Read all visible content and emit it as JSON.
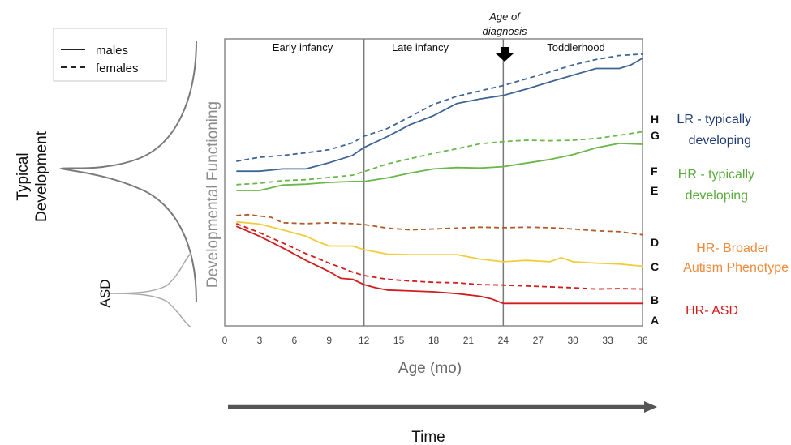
{
  "chart_data": {
    "type": "line",
    "xlabel": "Age (mo)",
    "ylabel": "Developmental Functioning",
    "bottom_label": "Time",
    "xlim": [
      0,
      36
    ],
    "x_ticks": [
      0,
      3,
      6,
      9,
      12,
      15,
      18,
      21,
      24,
      27,
      30,
      33,
      36
    ],
    "grid": false,
    "legend": {
      "position": "top-left",
      "entries": [
        {
          "label": "males",
          "style": "solid"
        },
        {
          "label": "females",
          "style": "dashed"
        }
      ]
    },
    "periods": [
      {
        "label": "Early infancy",
        "from": 0,
        "to": 12
      },
      {
        "label": "Late infancy",
        "from": 12,
        "to": 24
      },
      {
        "label": "Toddlerhood",
        "from": 24,
        "to": 36
      }
    ],
    "dividers": [
      12,
      24
    ],
    "diagnosis_marker": {
      "x": 24,
      "label_line1": "Age of",
      "label_line2": "diagnosis"
    },
    "distributions": [
      {
        "label_line1": "Typical",
        "label_line2": "Development"
      },
      {
        "label_line1": "ASD",
        "label_line2": ""
      }
    ],
    "groups": [
      {
        "line1": "LR - typically",
        "line2": "developing",
        "color": "#1f3b73",
        "letters": [
          "H",
          "G"
        ]
      },
      {
        "line1": "HR - typically",
        "line2": "developing",
        "color": "#5aab3c",
        "letters": [
          "F",
          "E"
        ]
      },
      {
        "line1": "HR- Broader",
        "line2": "Autism Phenotype",
        "color": "#f08a3a",
        "letters": [
          "D",
          "C"
        ]
      },
      {
        "line1": "HR- ASD",
        "line2": "",
        "color": "#d11c1c",
        "letters": [
          "B",
          "A"
        ]
      }
    ],
    "series": [
      {
        "letter": "H",
        "sex": "female",
        "dashed": true,
        "color": "#3f6595",
        "x": [
          1,
          3,
          5,
          7,
          9,
          11,
          12,
          14,
          16,
          18,
          20,
          22,
          24,
          26,
          28,
          30,
          32,
          34,
          36
        ],
        "y": [
          72.7,
          73.6,
          74.0,
          74.6,
          75.3,
          76.8,
          78.3,
          80.0,
          82.7,
          85.4,
          87.2,
          88.4,
          89.6,
          91.1,
          92.6,
          94.2,
          95.4,
          96.3,
          96.6
        ]
      },
      {
        "letter": "G",
        "sex": "male",
        "dashed": false,
        "color": "#3f6595",
        "x": [
          1,
          3,
          5,
          7,
          9,
          11,
          12,
          14,
          16,
          18,
          20,
          22,
          24,
          26,
          28,
          30,
          32,
          34,
          35,
          36
        ],
        "y": [
          70.5,
          70.5,
          71.0,
          71.0,
          72.4,
          74.0,
          75.8,
          78.2,
          80.9,
          82.9,
          85.6,
          86.6,
          87.4,
          88.8,
          90.4,
          91.9,
          93.4,
          93.4,
          94.2,
          95.7
        ]
      },
      {
        "letter": "F",
        "sex": "female",
        "dashed": true,
        "color": "#6ab74a",
        "x": [
          1,
          3,
          5,
          7,
          9,
          11,
          12,
          14,
          16,
          18,
          20,
          22,
          24,
          26,
          28,
          30,
          32,
          34,
          36
        ],
        "y": [
          67.5,
          67.8,
          68.4,
          68.6,
          69.1,
          69.6,
          70.4,
          72.1,
          73.3,
          74.5,
          75.5,
          76.6,
          77.1,
          77.4,
          77.3,
          77.4,
          77.8,
          78.5,
          79.3
        ]
      },
      {
        "letter": "E",
        "sex": "male",
        "dashed": false,
        "color": "#6ab74a",
        "x": [
          1,
          3,
          5,
          7,
          9,
          11,
          12,
          14,
          16,
          18,
          20,
          22,
          24,
          26,
          28,
          30,
          32,
          34,
          36
        ],
        "y": [
          66.2,
          66.2,
          67.4,
          67.6,
          68.0,
          68.2,
          68.2,
          69.0,
          70.1,
          71.0,
          71.3,
          71.2,
          71.5,
          72.3,
          73.1,
          74.2,
          75.7,
          76.7,
          76.5
        ]
      },
      {
        "letter": "D",
        "sex": "female",
        "dashed": true,
        "color": "#b15a2a",
        "x": [
          1,
          2,
          4,
          5,
          7,
          9,
          11,
          12,
          14,
          16,
          18,
          20,
          22,
          24,
          26,
          28,
          30,
          32,
          34,
          36
        ],
        "y": [
          60.6,
          60.8,
          60.2,
          59.0,
          58.8,
          59.0,
          58.8,
          58.6,
          57.8,
          57.4,
          57.6,
          57.8,
          58.0,
          57.9,
          58.0,
          57.9,
          57.6,
          57.2,
          57.0,
          56.3
        ]
      },
      {
        "letter": "C",
        "sex": "male",
        "dashed": false,
        "color": "#f2cd3b",
        "x": [
          1,
          3,
          5,
          7,
          8,
          9,
          11,
          12,
          14,
          16,
          18,
          20,
          22,
          24,
          26,
          28,
          29,
          30,
          32,
          34,
          36
        ],
        "y": [
          59.2,
          58.7,
          57.4,
          56.0,
          54.8,
          53.8,
          53.8,
          53.0,
          52.0,
          51.9,
          51.9,
          51.9,
          50.9,
          50.3,
          50.6,
          50.3,
          51.2,
          50.3,
          50.0,
          49.8,
          49.3
        ]
      },
      {
        "letter": "B",
        "sex": "female",
        "dashed": true,
        "color": "#d11c1c",
        "x": [
          1,
          3,
          5,
          7,
          9,
          11,
          12,
          14,
          16,
          18,
          20,
          22,
          24,
          26,
          28,
          30,
          32,
          34,
          36
        ],
        "y": [
          58.8,
          56.8,
          54.5,
          52.1,
          50.0,
          48.0,
          47.2,
          46.4,
          46.0,
          45.7,
          45.6,
          45.2,
          45.1,
          44.9,
          44.7,
          44.5,
          44.2,
          44.3,
          44.2
        ]
      },
      {
        "letter": "A",
        "sex": "male",
        "dashed": false,
        "color": "#d11c1c",
        "x": [
          1,
          3,
          5,
          7,
          9,
          10,
          11,
          12,
          13,
          14,
          16,
          18,
          20,
          22,
          23,
          24,
          26,
          28,
          30,
          32,
          34,
          36
        ],
        "y": [
          58.2,
          56.0,
          53.4,
          50.6,
          48.1,
          46.6,
          46.4,
          45.2,
          44.5,
          44.0,
          43.8,
          43.6,
          43.2,
          42.6,
          42.0,
          41.0,
          41.0,
          41.0,
          41.0,
          41.0,
          41.0,
          41.0
        ]
      }
    ]
  }
}
